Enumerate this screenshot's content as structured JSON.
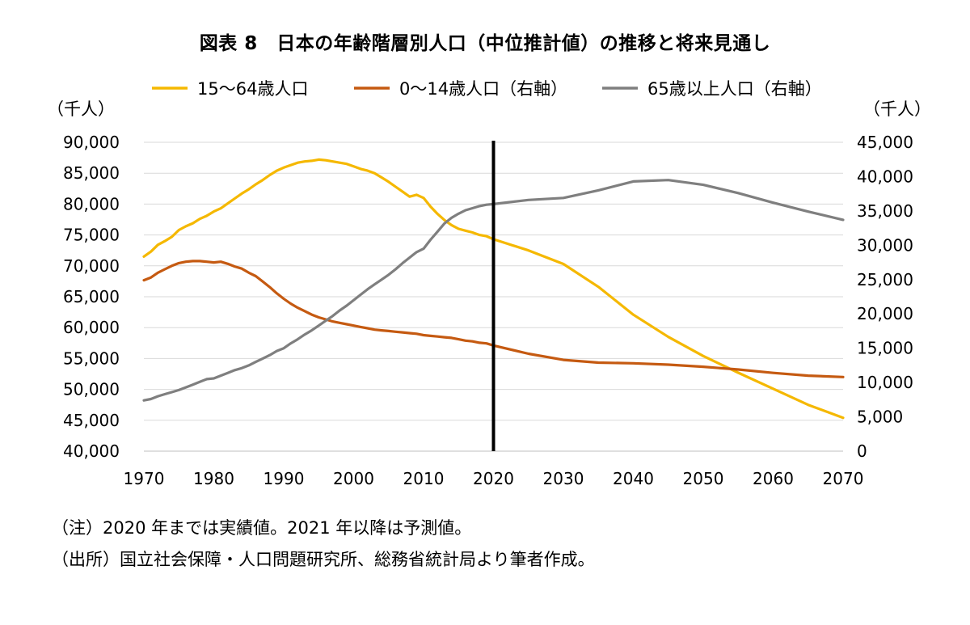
{
  "title": "図表 8　日本の年齢階層別人口（中位推計値）の推移と将来見通し",
  "notes": [
    "（注）2020 年までは実績値。2021 年以降は予測値。",
    "（出所）国立社会保障・人口問題研究所、総務省統計局より筆者作成。"
  ],
  "chart_data": {
    "type": "line",
    "title": "図表 8　日本の年齢階層別人口（中位推計値）の推移と将来見通し",
    "xlabel": "",
    "ylabel_left": "（千人）",
    "ylabel_right": "（千人）",
    "xlim": [
      1970,
      2070
    ],
    "ylim_left": [
      40000,
      90000
    ],
    "ylim_right": [
      0,
      45000
    ],
    "x_ticks": [
      "1970",
      "1980",
      "1990",
      "2000",
      "2010",
      "2020",
      "2030",
      "2040",
      "2050",
      "2060",
      "2070"
    ],
    "y_ticks_left": [
      "40,000",
      "45,000",
      "50,000",
      "55,000",
      "60,000",
      "65,000",
      "70,000",
      "75,000",
      "80,000",
      "85,000",
      "90,000"
    ],
    "y_ticks_right": [
      "0",
      "5,000",
      "10,000",
      "15,000",
      "20,000",
      "25,000",
      "30,000",
      "35,000",
      "40,000",
      "45,000"
    ],
    "grid": true,
    "legend_position": "top",
    "vertical_marker_x": 2020,
    "series": [
      {
        "name": "15～64歳人口",
        "axis": "left",
        "color": "#f5b800",
        "x": [
          1970,
          1971,
          1972,
          1973,
          1974,
          1975,
          1976,
          1977,
          1978,
          1979,
          1980,
          1981,
          1982,
          1983,
          1984,
          1985,
          1986,
          1987,
          1988,
          1989,
          1990,
          1991,
          1992,
          1993,
          1994,
          1995,
          1996,
          1997,
          1998,
          1999,
          2000,
          2001,
          2002,
          2003,
          2004,
          2005,
          2006,
          2007,
          2008,
          2009,
          2010,
          2011,
          2012,
          2013,
          2014,
          2015,
          2016,
          2017,
          2018,
          2019,
          2020,
          2025,
          2030,
          2035,
          2040,
          2045,
          2050,
          2055,
          2060,
          2065,
          2070
        ],
        "values": [
          71500,
          72300,
          73400,
          74000,
          74700,
          75800,
          76400,
          76900,
          77600,
          78100,
          78800,
          79300,
          80100,
          80900,
          81700,
          82400,
          83200,
          83900,
          84700,
          85400,
          85900,
          86300,
          86700,
          86900,
          87000,
          87200,
          87100,
          86900,
          86700,
          86500,
          86100,
          85700,
          85400,
          85000,
          84300,
          83600,
          82800,
          82000,
          81200,
          81500,
          81000,
          79600,
          78400,
          77400,
          76600,
          76000,
          75700,
          75400,
          75000,
          74800,
          74300,
          72500,
          70300,
          66600,
          62100,
          58500,
          55400,
          52700,
          50100,
          47500,
          45400
        ]
      },
      {
        "name": "0～14歳人口（右軸）",
        "axis": "right",
        "color": "#c55a11",
        "x": [
          1970,
          1971,
          1972,
          1973,
          1974,
          1975,
          1976,
          1977,
          1978,
          1979,
          1980,
          1981,
          1982,
          1983,
          1984,
          1985,
          1986,
          1987,
          1988,
          1989,
          1990,
          1991,
          1992,
          1993,
          1994,
          1995,
          1996,
          1997,
          1998,
          1999,
          2000,
          2001,
          2002,
          2003,
          2004,
          2005,
          2006,
          2007,
          2008,
          2009,
          2010,
          2011,
          2012,
          2013,
          2014,
          2015,
          2016,
          2017,
          2018,
          2019,
          2020,
          2025,
          2030,
          2035,
          2040,
          2045,
          2050,
          2055,
          2060,
          2065,
          2070
        ],
        "values": [
          24900,
          25300,
          26000,
          26500,
          27000,
          27400,
          27600,
          27700,
          27700,
          27600,
          27500,
          27600,
          27300,
          26900,
          26600,
          26000,
          25500,
          24700,
          23900,
          23000,
          22200,
          21500,
          20900,
          20400,
          19900,
          19500,
          19200,
          18900,
          18700,
          18500,
          18300,
          18100,
          17900,
          17700,
          17600,
          17500,
          17400,
          17300,
          17200,
          17100,
          16900,
          16800,
          16700,
          16600,
          16500,
          16300,
          16100,
          16000,
          15800,
          15700,
          15400,
          14200,
          13300,
          12900,
          12800,
          12600,
          12300,
          11900,
          11400,
          11000,
          10800
        ]
      },
      {
        "name": "65歳以上人口（右軸）",
        "axis": "right",
        "color": "#7f7f7f",
        "x": [
          1970,
          1971,
          1972,
          1973,
          1974,
          1975,
          1976,
          1977,
          1978,
          1979,
          1980,
          1981,
          1982,
          1983,
          1984,
          1985,
          1986,
          1987,
          1988,
          1989,
          1990,
          1991,
          1992,
          1993,
          1994,
          1995,
          1996,
          1997,
          1998,
          1999,
          2000,
          2001,
          2002,
          2003,
          2004,
          2005,
          2006,
          2007,
          2008,
          2009,
          2010,
          2011,
          2012,
          2013,
          2014,
          2015,
          2016,
          2017,
          2018,
          2019,
          2020,
          2025,
          2030,
          2035,
          2040,
          2045,
          2050,
          2055,
          2060,
          2065,
          2070
        ],
        "values": [
          7400,
          7600,
          8000,
          8300,
          8600,
          8900,
          9300,
          9700,
          10100,
          10500,
          10600,
          11000,
          11400,
          11800,
          12100,
          12500,
          13000,
          13500,
          14000,
          14600,
          15000,
          15700,
          16300,
          17000,
          17600,
          18300,
          19000,
          19700,
          20500,
          21200,
          22000,
          22800,
          23600,
          24300,
          25000,
          25700,
          26500,
          27400,
          28200,
          29000,
          29500,
          30800,
          32000,
          33200,
          34000,
          34600,
          35100,
          35400,
          35700,
          35900,
          36000,
          36600,
          36900,
          38000,
          39300,
          39500,
          38800,
          37600,
          36200,
          34900,
          33700
        ]
      }
    ]
  }
}
